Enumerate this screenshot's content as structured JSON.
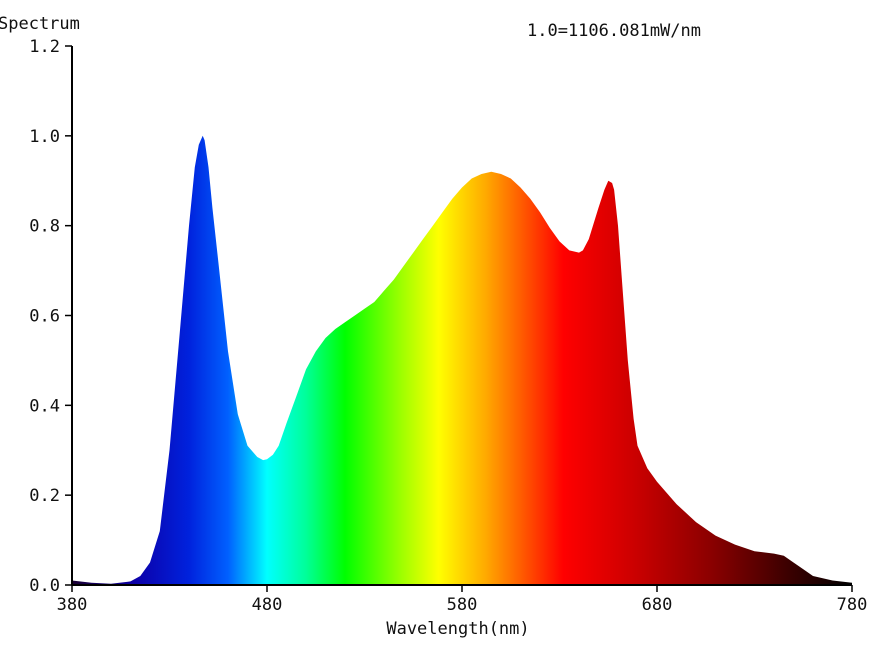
{
  "chart_data": {
    "type": "area",
    "title": "Spectrum",
    "annotation": "1.0=1106.081mW/nm",
    "xlabel": "Wavelength(nm)",
    "ylabel": "",
    "xlim": [
      380,
      780
    ],
    "ylim": [
      0,
      1.2
    ],
    "x_ticks": [
      380,
      480,
      580,
      680,
      780
    ],
    "x_tick_labels": [
      "380",
      "480",
      "580",
      "680",
      "780"
    ],
    "y_ticks": [
      0,
      0.2,
      0.4,
      0.6,
      0.8,
      1.0,
      1.2
    ],
    "y_tick_labels": [
      "0.0",
      "0.2",
      "0.4",
      "0.6",
      "0.8",
      "1.0",
      "1.2"
    ],
    "grid": false,
    "fill": "wavelength spectrum gradient",
    "series": [
      {
        "x": [
          380,
          390,
          400,
          410,
          415,
          420,
          425,
          430,
          435,
          440,
          443,
          445,
          447,
          448,
          450,
          452,
          455,
          460,
          465,
          470,
          475,
          478,
          480,
          483,
          486,
          490,
          495,
          500,
          505,
          510,
          515,
          520,
          525,
          530,
          535,
          540,
          545,
          550,
          555,
          560,
          565,
          570,
          575,
          580,
          585,
          590,
          595,
          600,
          605,
          610,
          615,
          620,
          625,
          630,
          635,
          640,
          642,
          645,
          650,
          653,
          655,
          657,
          658,
          660,
          662,
          665,
          668,
          670,
          675,
          680,
          690,
          700,
          710,
          720,
          730,
          740,
          745,
          750,
          755,
          760,
          770,
          780
        ],
        "y": [
          0.01,
          0.005,
          0.003,
          0.008,
          0.02,
          0.05,
          0.12,
          0.3,
          0.55,
          0.8,
          0.93,
          0.98,
          1.0,
          0.99,
          0.93,
          0.84,
          0.72,
          0.52,
          0.38,
          0.31,
          0.285,
          0.278,
          0.28,
          0.29,
          0.31,
          0.36,
          0.42,
          0.48,
          0.52,
          0.55,
          0.57,
          0.585,
          0.6,
          0.615,
          0.63,
          0.655,
          0.68,
          0.71,
          0.74,
          0.77,
          0.8,
          0.83,
          0.86,
          0.885,
          0.905,
          0.915,
          0.92,
          0.915,
          0.905,
          0.885,
          0.86,
          0.83,
          0.795,
          0.765,
          0.745,
          0.74,
          0.745,
          0.77,
          0.84,
          0.88,
          0.9,
          0.895,
          0.88,
          0.8,
          0.68,
          0.5,
          0.37,
          0.31,
          0.26,
          0.23,
          0.18,
          0.14,
          0.11,
          0.09,
          0.075,
          0.07,
          0.065,
          0.05,
          0.035,
          0.02,
          0.01,
          0.005
        ]
      }
    ]
  }
}
